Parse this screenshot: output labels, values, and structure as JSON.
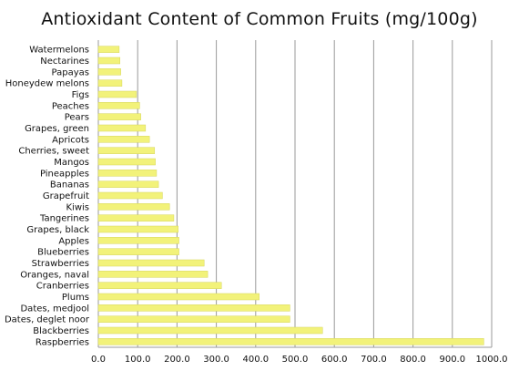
{
  "chart_data": {
    "type": "bar",
    "orientation": "horizontal",
    "title": "Antioxidant Content of Common Fruits (mg/100g)",
    "xlabel": "",
    "ylabel": "",
    "xlim": [
      0,
      1000
    ],
    "xticks": [
      "0.0",
      "100.0",
      "200.0",
      "300.0",
      "400.0",
      "500.0",
      "600.0",
      "700.0",
      "800.0",
      "900.0",
      "1000.0"
    ],
    "grid": "vertical",
    "bar_color": "#f2f27a",
    "categories": [
      "Watermelons",
      "Nectarines",
      "Papayas",
      "Honeydew melons",
      "Figs",
      "Peaches",
      "Pears",
      "Grapes, green",
      "Apricots",
      "Cherries, sweet",
      "Mangos",
      "Pineapples",
      "Bananas",
      "Grapefruit",
      "Kiwis",
      "Tangerines",
      "Grapes, black",
      "Apples",
      "Blueberries",
      "Strawberries",
      "Oranges, naval",
      "Cranberries",
      "Plums",
      "Dates, medjool",
      "Dates, deglet noor",
      "Blackberries",
      "Raspberries"
    ],
    "values": [
      53,
      55,
      57,
      60,
      97,
      105,
      108,
      120,
      130,
      143,
      145,
      148,
      153,
      163,
      181,
      192,
      203,
      205,
      205,
      269,
      278,
      313,
      409,
      487,
      487,
      570,
      980
    ]
  }
}
